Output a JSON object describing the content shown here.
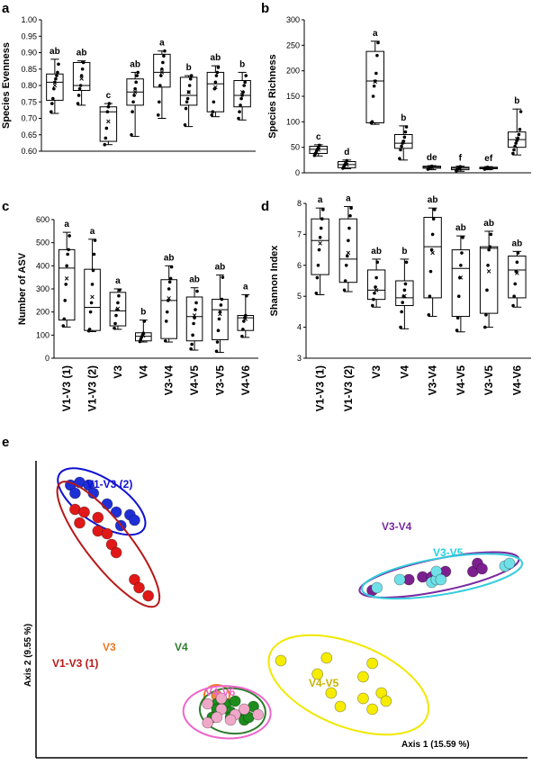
{
  "panels": {
    "a": {
      "letter": "a",
      "ylabel": "Species Evenness",
      "yticks": [
        "0.60",
        "0.65",
        "0.70",
        "0.75",
        "0.80",
        "0.85",
        "0.90",
        "0.95",
        "1.00"
      ]
    },
    "b": {
      "letter": "b",
      "ylabel": "Species Richness",
      "yticks": [
        "0",
        "50",
        "100",
        "150",
        "200",
        "250",
        "300"
      ]
    },
    "c": {
      "letter": "c",
      "ylabel": "Number of ASV",
      "yticks": [
        "0",
        "100",
        "200",
        "300",
        "400",
        "500",
        "600"
      ]
    },
    "d": {
      "letter": "d",
      "ylabel": "Shannon Index",
      "yticks": [
        "3",
        "4",
        "5",
        "6",
        "7",
        "8"
      ]
    },
    "e": {
      "letter": "e",
      "xlabel": "Axis 1 (15.59 %)",
      "ylabel": "Axis 2 (9.55 %)"
    }
  },
  "categories": [
    "V1-V3 (1)",
    "V1-V3 (2)",
    "V3",
    "V4",
    "V3-V4",
    "V4-V5",
    "V3-V5",
    "V4-V6"
  ],
  "chart_data": [
    {
      "type": "box",
      "panel": "a",
      "ylabel": "Species Evenness",
      "ylim": [
        0.6,
        1.0
      ],
      "categories": [
        "V1-V3 (1)",
        "V1-V3 (2)",
        "V3",
        "V4",
        "V3-V4",
        "V4-V5",
        "V3-V5",
        "V4-V6"
      ],
      "boxes": [
        {
          "min": 0.715,
          "q1": 0.755,
          "median": 0.81,
          "q3": 0.835,
          "max": 0.88,
          "mean": 0.8,
          "letter": "ab",
          "points": [
            0.72,
            0.745,
            0.76,
            0.79,
            0.81,
            0.82,
            0.83,
            0.84,
            0.865
          ]
        },
        {
          "min": 0.74,
          "q1": 0.785,
          "median": 0.8,
          "q3": 0.87,
          "max": 0.875,
          "mean": 0.82,
          "letter": "ab",
          "points": [
            0.745,
            0.77,
            0.79,
            0.8,
            0.83,
            0.85,
            0.87
          ]
        },
        {
          "min": 0.62,
          "q1": 0.63,
          "median": 0.72,
          "q3": 0.735,
          "max": 0.745,
          "mean": 0.69,
          "letter": "c",
          "points": [
            0.62,
            0.64,
            0.67,
            0.72,
            0.735,
            0.745
          ]
        },
        {
          "min": 0.645,
          "q1": 0.74,
          "median": 0.78,
          "q3": 0.82,
          "max": 0.84,
          "mean": 0.78,
          "letter": "ab",
          "points": [
            0.65,
            0.72,
            0.75,
            0.77,
            0.79,
            0.81,
            0.83,
            0.84
          ]
        },
        {
          "min": 0.7,
          "q1": 0.795,
          "median": 0.84,
          "q3": 0.895,
          "max": 0.905,
          "mean": 0.84,
          "letter": "a",
          "points": [
            0.71,
            0.75,
            0.8,
            0.83,
            0.85,
            0.87,
            0.89,
            0.905
          ]
        },
        {
          "min": 0.675,
          "q1": 0.74,
          "median": 0.77,
          "q3": 0.825,
          "max": 0.83,
          "mean": 0.78,
          "letter": "b",
          "points": [
            0.68,
            0.73,
            0.75,
            0.76,
            0.78,
            0.8,
            0.82,
            0.83
          ]
        },
        {
          "min": 0.705,
          "q1": 0.72,
          "median": 0.805,
          "q3": 0.84,
          "max": 0.86,
          "mean": 0.795,
          "letter": "ab",
          "points": [
            0.71,
            0.72,
            0.75,
            0.79,
            0.81,
            0.83,
            0.84,
            0.855
          ]
        },
        {
          "min": 0.695,
          "q1": 0.735,
          "median": 0.77,
          "q3": 0.815,
          "max": 0.84,
          "mean": 0.78,
          "letter": "b",
          "points": [
            0.7,
            0.72,
            0.74,
            0.76,
            0.77,
            0.78,
            0.8,
            0.81,
            0.83
          ]
        }
      ]
    },
    {
      "type": "box",
      "panel": "b",
      "ylabel": "Species Richness",
      "ylim": [
        0,
        300
      ],
      "categories": [
        "V1-V3 (1)",
        "V1-V3 (2)",
        "V3",
        "V4",
        "V3-V4",
        "V4-V5",
        "V3-V5",
        "V4-V6"
      ],
      "boxes": [
        {
          "min": 33,
          "q1": 38,
          "median": 46,
          "q3": 52,
          "max": 55,
          "mean": 45,
          "letter": "c",
          "points": [
            34,
            38,
            42,
            46,
            50,
            54
          ]
        },
        {
          "min": 8,
          "q1": 10,
          "median": 16,
          "q3": 22,
          "max": 25,
          "mean": 16,
          "letter": "d",
          "points": [
            9,
            12,
            16,
            20,
            24
          ]
        },
        {
          "min": 95,
          "q1": 98,
          "median": 180,
          "q3": 238,
          "max": 258,
          "mean": 178,
          "letter": "a",
          "points": [
            98,
            100,
            150,
            170,
            180,
            195,
            230,
            255
          ]
        },
        {
          "min": 25,
          "q1": 48,
          "median": 58,
          "q3": 75,
          "max": 92,
          "mean": 60,
          "letter": "b",
          "points": [
            28,
            45,
            52,
            58,
            62,
            70,
            80,
            90
          ]
        },
        {
          "min": 6,
          "q1": 9,
          "median": 11,
          "q3": 13,
          "max": 14,
          "mean": 11,
          "letter": "de",
          "points": [
            7,
            9,
            11,
            12,
            13
          ]
        },
        {
          "min": 3,
          "q1": 6,
          "median": 9,
          "q3": 11,
          "max": 13,
          "mean": 8,
          "letter": "f",
          "points": [
            4,
            7,
            9,
            11,
            12
          ]
        },
        {
          "min": 6,
          "q1": 8,
          "median": 10,
          "q3": 11,
          "max": 12,
          "mean": 9,
          "letter": "ef",
          "points": [
            7,
            9,
            10,
            11
          ]
        },
        {
          "min": 35,
          "q1": 50,
          "median": 65,
          "q3": 80,
          "max": 125,
          "mean": 66,
          "letter": "b",
          "points": [
            38,
            45,
            52,
            58,
            63,
            68,
            75,
            85,
            120
          ]
        }
      ]
    },
    {
      "type": "box",
      "panel": "c",
      "ylabel": "Number of ASV",
      "ylim": [
        0,
        600
      ],
      "categories": [
        "V1-V3 (1)",
        "V1-V3 (2)",
        "V3",
        "V4",
        "V3-V4",
        "V4-V5",
        "V3-V5",
        "V4-V6"
      ],
      "boxes": [
        {
          "min": 135,
          "q1": 165,
          "median": 390,
          "q3": 470,
          "max": 545,
          "mean": 345,
          "letter": "a",
          "points": [
            140,
            170,
            250,
            320,
            400,
            450,
            470,
            530
          ]
        },
        {
          "min": 115,
          "q1": 120,
          "median": 220,
          "q3": 385,
          "max": 515,
          "mean": 265,
          "letter": "a",
          "points": [
            118,
            125,
            200,
            240,
            320,
            380,
            450,
            510
          ]
        },
        {
          "min": 125,
          "q1": 140,
          "median": 205,
          "q3": 285,
          "max": 300,
          "mean": 215,
          "letter": "a",
          "points": [
            130,
            150,
            185,
            210,
            240,
            270,
            295
          ]
        },
        {
          "min": 70,
          "q1": 75,
          "median": 95,
          "q3": 110,
          "max": 165,
          "mean": 98,
          "letter": "b",
          "points": [
            72,
            82,
            92,
            100,
            108,
            160
          ]
        },
        {
          "min": 70,
          "q1": 85,
          "median": 250,
          "q3": 340,
          "max": 400,
          "mean": 260,
          "letter": "ab",
          "points": [
            75,
            160,
            200,
            250,
            300,
            330,
            345,
            395
          ]
        },
        {
          "min": 35,
          "q1": 75,
          "median": 180,
          "q3": 265,
          "max": 305,
          "mean": 185,
          "letter": "ab",
          "points": [
            40,
            60,
            100,
            150,
            175,
            210,
            240,
            290
          ]
        },
        {
          "min": 25,
          "q1": 80,
          "median": 210,
          "q3": 255,
          "max": 360,
          "mean": 190,
          "letter": "ab",
          "points": [
            30,
            70,
            120,
            170,
            200,
            230,
            255,
            350
          ]
        },
        {
          "min": 90,
          "q1": 120,
          "median": 175,
          "q3": 185,
          "max": 275,
          "mean": 170,
          "letter": "a",
          "points": [
            95,
            125,
            160,
            175,
            185,
            270
          ]
        }
      ]
    },
    {
      "type": "box",
      "panel": "d",
      "ylabel": "Shannon Index",
      "ylim": [
        3,
        8
      ],
      "categories": [
        "V1-V3 (1)",
        "V1-V3 (2)",
        "V3",
        "V4",
        "V3-V4",
        "V4-V5",
        "V3-V5",
        "V4-V6"
      ],
      "boxes": [
        {
          "min": 5.05,
          "q1": 5.7,
          "median": 6.8,
          "q3": 7.5,
          "max": 7.85,
          "mean": 6.7,
          "letter": "a",
          "points": [
            5.1,
            5.6,
            6.0,
            6.5,
            6.9,
            7.2,
            7.5,
            7.8
          ]
        },
        {
          "min": 5.15,
          "q1": 5.45,
          "median": 6.2,
          "q3": 7.5,
          "max": 7.9,
          "mean": 6.4,
          "letter": "a",
          "points": [
            5.2,
            5.5,
            6.0,
            6.3,
            6.8,
            7.2,
            7.6,
            7.85
          ]
        },
        {
          "min": 4.65,
          "q1": 4.9,
          "median": 5.2,
          "q3": 5.85,
          "max": 6.2,
          "mean": 5.2,
          "letter": "ab",
          "points": [
            4.7,
            4.9,
            5.1,
            5.3,
            5.6,
            6.1
          ]
        },
        {
          "min": 3.95,
          "q1": 4.7,
          "median": 4.95,
          "q3": 5.5,
          "max": 6.2,
          "mean": 5.0,
          "letter": "b",
          "points": [
            4.0,
            4.5,
            4.8,
            5.0,
            5.2,
            5.4,
            6.1
          ]
        },
        {
          "min": 4.35,
          "q1": 4.95,
          "median": 6.6,
          "q3": 7.55,
          "max": 7.85,
          "mean": 6.4,
          "letter": "ab",
          "points": [
            4.4,
            5.0,
            5.8,
            6.5,
            7.0,
            7.5,
            7.8
          ]
        },
        {
          "min": 3.85,
          "q1": 4.35,
          "median": 5.9,
          "q3": 6.5,
          "max": 6.95,
          "mean": 5.6,
          "letter": "ab",
          "points": [
            3.9,
            4.3,
            5.0,
            5.6,
            6.0,
            6.4,
            6.9
          ]
        },
        {
          "min": 4.0,
          "q1": 4.45,
          "median": 6.55,
          "q3": 6.6,
          "max": 7.1,
          "mean": 5.8,
          "letter": "ab",
          "points": [
            4.0,
            4.4,
            5.2,
            6.0,
            6.5,
            6.6,
            7.0
          ]
        },
        {
          "min": 4.65,
          "q1": 4.95,
          "median": 5.85,
          "q3": 6.3,
          "max": 6.45,
          "mean": 5.75,
          "letter": "ab",
          "points": [
            4.7,
            5.0,
            5.4,
            5.8,
            6.1,
            6.4
          ]
        }
      ]
    },
    {
      "type": "scatter",
      "panel": "e",
      "xlabel": "Axis 1 (15.59 %)",
      "ylabel": "Axis 2 (9.55 %)",
      "xlim": [
        0,
        100
      ],
      "ylim": [
        0,
        100
      ],
      "groups": [
        {
          "name": "V1-V3 (2)",
          "color": "#1f2fd6",
          "ellipse_color": "#1010d0",
          "points": [
            [
              4,
              95
            ],
            [
              6,
              96
            ],
            [
              8,
              95
            ],
            [
              5,
              92
            ],
            [
              9,
              92
            ],
            [
              12,
              88
            ],
            [
              14,
              85
            ],
            [
              17,
              84
            ],
            [
              18,
              82
            ],
            [
              15,
              80
            ]
          ]
        },
        {
          "name": "V1-V3 (1)",
          "color": "#e01818",
          "ellipse_color": "#b81818",
          "points": [
            [
              5,
              86
            ],
            [
              7,
              85
            ],
            [
              10,
              83
            ],
            [
              6,
              81
            ],
            [
              10,
              78
            ],
            [
              12,
              77
            ],
            [
              13,
              73
            ],
            [
              14,
              70
            ],
            [
              18,
              60
            ],
            [
              19,
              57
            ],
            [
              21,
              54
            ]
          ]
        },
        {
          "name": "V3",
          "color": "#f08a3a",
          "ellipse_color": "#ee7722",
          "points": [
            [
              36,
              17
            ]
          ]
        },
        {
          "name": "V4",
          "color": "#1c8c1c",
          "ellipse_color": "#2e7d2e",
          "points": [
            [
              36,
              14
            ],
            [
              38,
              14
            ],
            [
              40,
              15
            ],
            [
              36,
              12
            ],
            [
              39,
              11
            ],
            [
              42,
              11
            ],
            [
              35,
              9
            ],
            [
              44,
              13
            ],
            [
              39,
              9
            ],
            [
              42,
              8
            ],
            [
              43,
              9
            ]
          ]
        },
        {
          "name": "V4-V6",
          "color": "#f0a8c8",
          "ellipse_color": "#ee66cc",
          "points": [
            [
              37,
              12
            ],
            [
              34,
              14
            ],
            [
              37,
              16
            ],
            [
              42,
              12
            ],
            [
              40,
              10
            ],
            [
              45,
              10
            ],
            [
              39,
              8
            ],
            [
              36,
              9
            ],
            [
              34,
              7
            ]
          ]
        },
        {
          "name": "V4-V5",
          "color": "#f5ec00",
          "ellipse_color": "#f0e800",
          "points": [
            [
              50,
              30
            ],
            [
              60,
              31
            ],
            [
              70,
              29
            ],
            [
              58,
              25
            ],
            [
              68,
              24
            ],
            [
              61,
              18
            ],
            [
              68,
              16
            ],
            [
              72,
              18
            ],
            [
              73,
              15
            ],
            [
              63,
              13
            ],
            [
              70,
              12
            ]
          ]
        },
        {
          "name": "V3-V4",
          "color": "#7c2090",
          "ellipse_color": "#7a2aa0",
          "points": [
            [
              70,
              56
            ],
            [
              78,
              60
            ],
            [
              81,
              61
            ],
            [
              83,
              61
            ],
            [
              86,
              63
            ],
            [
              92,
              63
            ],
            [
              93,
              66
            ],
            [
              94,
              64
            ]
          ]
        },
        {
          "name": "V3-V5",
          "color": "#70e0e8",
          "ellipse_color": "#33ccdd",
          "points": [
            [
              71,
              57
            ],
            [
              76,
              60
            ],
            [
              83,
              59
            ],
            [
              84,
              60
            ],
            [
              84,
              63
            ],
            [
              85,
              60
            ],
            [
              99,
              65
            ],
            [
              100,
              66
            ]
          ]
        }
      ]
    }
  ]
}
